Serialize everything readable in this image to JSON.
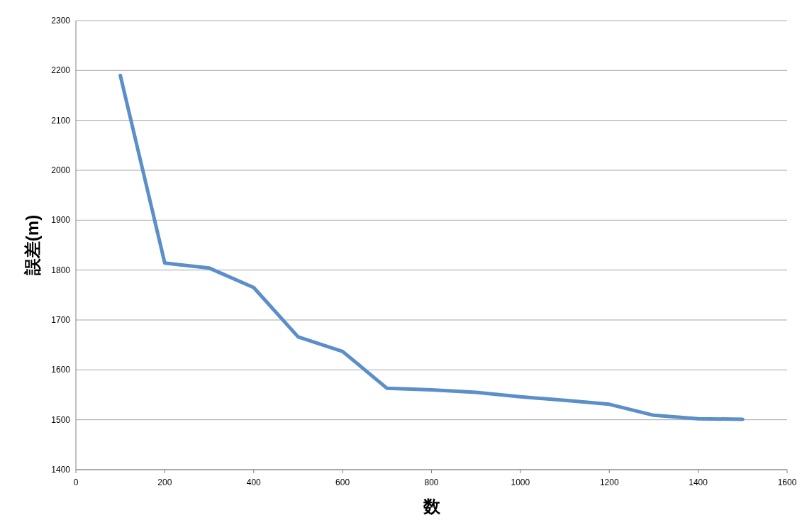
{
  "chart_data": {
    "type": "line",
    "xlabel": "数",
    "ylabel": "誤差(m)",
    "x": [
      100,
      200,
      300,
      400,
      500,
      600,
      700,
      800,
      900,
      1000,
      1100,
      1200,
      1300,
      1400,
      1500
    ],
    "series": [
      {
        "color": "#5b8fc9",
        "values": [
          2190,
          1814,
          1804,
          1765,
          1666,
          1637,
          1563,
          1560,
          1555,
          1546,
          1539,
          1531,
          1509,
          1502,
          1501
        ]
      }
    ],
    "xlim": [
      0,
      1600
    ],
    "xticks": [
      0,
      200,
      400,
      600,
      800,
      1000,
      1200,
      1400,
      1600
    ],
    "ylim": [
      1400,
      2300
    ],
    "yticks": [
      1400,
      1500,
      1600,
      1700,
      1800,
      1900,
      2000,
      2100,
      2200,
      2300
    ],
    "grid": "y"
  }
}
